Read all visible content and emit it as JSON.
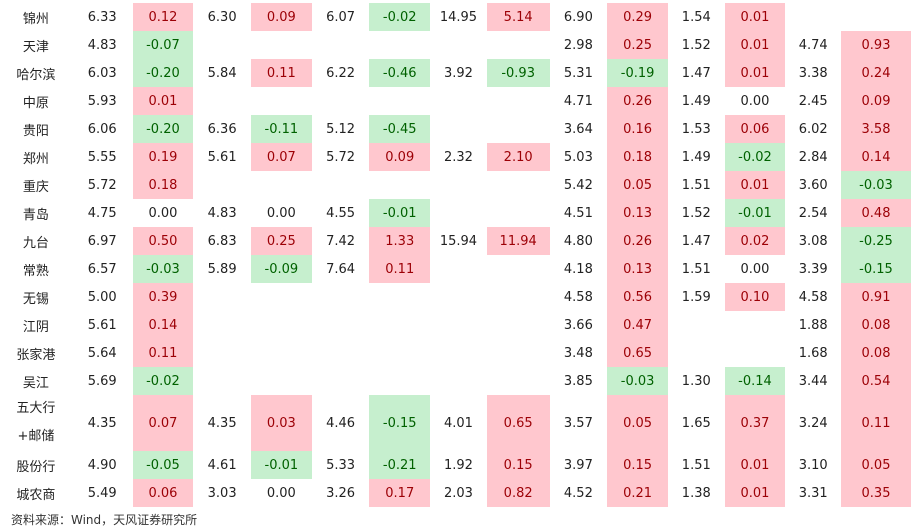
{
  "rows": [
    {
      "name": [
        "锦州"
      ],
      "cells": [
        "6.33",
        "0.12",
        "6.30",
        "0.09",
        "6.07",
        "-0.02",
        "14.95",
        "5.14",
        "6.90",
        "0.29",
        "1.54",
        "0.01",
        "",
        ""
      ]
    },
    {
      "name": [
        "天津"
      ],
      "cells": [
        "4.83",
        "-0.07",
        "",
        "",
        "",
        "",
        "",
        "",
        "2.98",
        "0.25",
        "1.52",
        "0.01",
        "4.74",
        "0.93"
      ]
    },
    {
      "name": [
        "哈尔滨"
      ],
      "cells": [
        "6.03",
        "-0.20",
        "5.84",
        "0.11",
        "6.22",
        "-0.46",
        "3.92",
        "-0.93",
        "5.31",
        "-0.19",
        "1.47",
        "0.01",
        "3.38",
        "0.24"
      ]
    },
    {
      "name": [
        "中原"
      ],
      "cells": [
        "5.93",
        "0.01",
        "",
        "",
        "",
        "",
        "",
        "",
        "4.71",
        "0.26",
        "1.49",
        "0.00",
        "2.45",
        "0.09"
      ]
    },
    {
      "name": [
        "贵阳"
      ],
      "cells": [
        "6.06",
        "-0.20",
        "6.36",
        "-0.11",
        "5.12",
        "-0.45",
        "",
        "",
        "3.64",
        "0.16",
        "1.53",
        "0.06",
        "6.02",
        "3.58"
      ]
    },
    {
      "name": [
        "郑州"
      ],
      "cells": [
        "5.55",
        "0.19",
        "5.61",
        "0.07",
        "5.72",
        "0.09",
        "2.32",
        "2.10",
        "5.03",
        "0.18",
        "1.49",
        "-0.02",
        "2.84",
        "0.14"
      ]
    },
    {
      "name": [
        "重庆"
      ],
      "cells": [
        "5.72",
        "0.18",
        "",
        "",
        "",
        "",
        "",
        "",
        "5.42",
        "0.05",
        "1.51",
        "0.01",
        "3.60",
        "-0.03"
      ]
    },
    {
      "name": [
        "青岛"
      ],
      "cells": [
        "4.75",
        "0.00",
        "4.83",
        "0.00",
        "4.55",
        "-0.01",
        "",
        "",
        "4.51",
        "0.13",
        "1.52",
        "-0.01",
        "2.54",
        "0.48"
      ]
    },
    {
      "name": [
        "九台"
      ],
      "cells": [
        "6.97",
        "0.50",
        "6.83",
        "0.25",
        "7.42",
        "1.33",
        "15.94",
        "11.94",
        "4.80",
        "0.26",
        "1.47",
        "0.02",
        "3.08",
        "-0.25"
      ]
    },
    {
      "name": [
        "常熟"
      ],
      "cells": [
        "6.57",
        "-0.03",
        "5.89",
        "-0.09",
        "7.64",
        "0.11",
        "",
        "",
        "4.18",
        "0.13",
        "1.51",
        "0.00",
        "3.39",
        "-0.15"
      ]
    },
    {
      "name": [
        "无锡"
      ],
      "cells": [
        "5.00",
        "0.39",
        "",
        "",
        "",
        "",
        "",
        "",
        "4.58",
        "0.56",
        "1.59",
        "0.10",
        "4.58",
        "0.91"
      ]
    },
    {
      "name": [
        "江阴"
      ],
      "cells": [
        "5.61",
        "0.14",
        "",
        "",
        "",
        "",
        "",
        "",
        "3.66",
        "0.47",
        "",
        "",
        "1.88",
        "0.08"
      ]
    },
    {
      "name": [
        "张家港"
      ],
      "cells": [
        "5.64",
        "0.11",
        "",
        "",
        "",
        "",
        "",
        "",
        "3.48",
        "0.65",
        "",
        "",
        "1.68",
        "0.08"
      ]
    },
    {
      "name": [
        "吴江"
      ],
      "cells": [
        "5.69",
        "-0.02",
        "",
        "",
        "",
        "",
        "",
        "",
        "3.85",
        "-0.03",
        "1.30",
        "-0.14",
        "3.44",
        "0.54"
      ]
    },
    {
      "name": [
        "五大行",
        "+邮储"
      ],
      "cells": [
        "4.35",
        "0.07",
        "4.35",
        "0.03",
        "4.46",
        "-0.15",
        "4.01",
        "0.65",
        "3.57",
        "0.05",
        "1.65",
        "0.37",
        "3.24",
        "0.11"
      ]
    },
    {
      "name": [
        "股份行"
      ],
      "cells": [
        "4.90",
        "-0.05",
        "4.61",
        "-0.01",
        "5.33",
        "-0.21",
        "1.92",
        "0.15",
        "3.97",
        "0.15",
        "1.51",
        "0.01",
        "3.10",
        "0.05"
      ]
    },
    {
      "name": [
        "城农商"
      ],
      "cells": [
        "5.49",
        "0.06",
        "3.03",
        "0.00",
        "3.26",
        "0.17",
        "2.03",
        "0.82",
        "4.52",
        "0.21",
        "1.38",
        "0.01",
        "3.31",
        "0.35"
      ]
    }
  ],
  "row_heights": [
    28,
    28,
    28,
    28,
    28,
    28,
    28,
    28,
    28,
    28,
    28,
    28,
    28,
    28,
    56,
    28,
    28
  ],
  "column_pattern": "value-change pairs; change cells shaded pink when positive, green when negative",
  "colors": {
    "positive_fill": "#ffc7ce",
    "positive_text": "#9c0006",
    "negative_fill": "#c6efce",
    "negative_text": "#006100"
  },
  "source_note": "资料来源：Wind，天风证券研究所"
}
